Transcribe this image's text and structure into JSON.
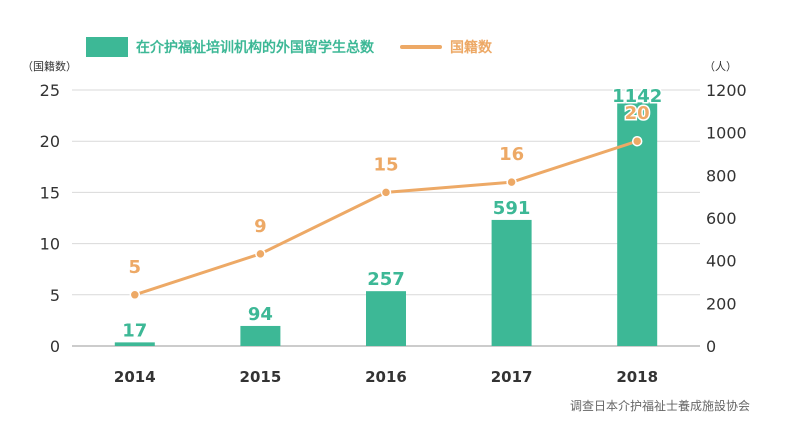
{
  "legend": {
    "bar_label": "在介护福祉培训机构的外国留学生总数",
    "line_label": "国籍数"
  },
  "units": {
    "left": "（国籍数）",
    "right": "（人）"
  },
  "source": "调查日本介护福祉士養成施設协会",
  "colors": {
    "bar": "#3db896",
    "line": "#eda966",
    "axis_text": "#333333",
    "grid": "#d9d9d9"
  },
  "chart_data": {
    "type": "bar+line",
    "categories": [
      "2014",
      "2015",
      "2016",
      "2017",
      "2018"
    ],
    "series": [
      {
        "name": "在介护福祉培训机构的外国留学生总数",
        "type": "bar",
        "axis": "right",
        "values": [
          17,
          94,
          257,
          591,
          1142
        ]
      },
      {
        "name": "国籍数",
        "type": "line",
        "axis": "left",
        "values": [
          5,
          9,
          15,
          16,
          20
        ]
      }
    ],
    "left_axis": {
      "label": "（国籍数）",
      "ticks": [
        0,
        5,
        10,
        15,
        20,
        25
      ],
      "ylim": [
        0,
        25
      ]
    },
    "right_axis": {
      "label": "（人）",
      "ticks": [
        0,
        200,
        400,
        600,
        800,
        1000,
        1200
      ],
      "ylim": [
        0,
        1200
      ]
    },
    "grid": true,
    "legend_position": "top-left"
  }
}
